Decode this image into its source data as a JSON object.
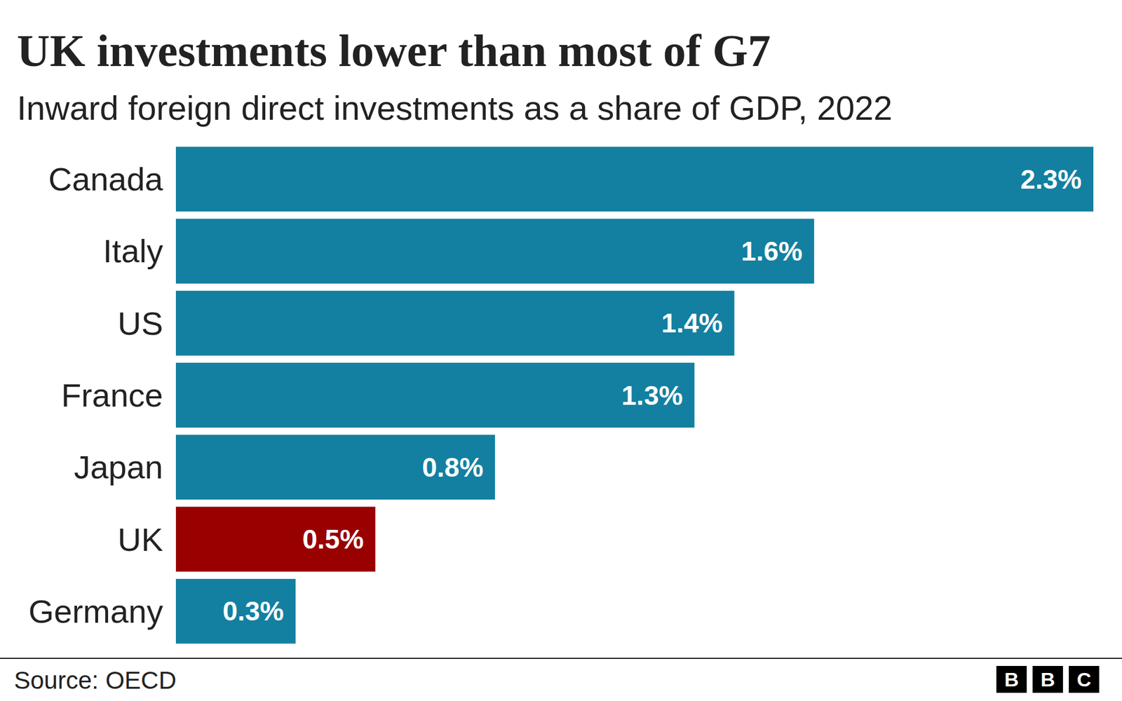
{
  "chart_data": {
    "type": "bar",
    "title": "UK investments lower than most of G7",
    "subtitle": "Inward foreign direct investments as a share of GDP, 2022",
    "categories": [
      "Canada",
      "Italy",
      "US",
      "France",
      "Japan",
      "UK",
      "Germany"
    ],
    "values": [
      2.3,
      1.6,
      1.4,
      1.3,
      0.8,
      0.5,
      0.3
    ],
    "value_labels": [
      "2.3%",
      "1.6%",
      "1.4%",
      "1.3%",
      "0.8%",
      "0.5%",
      "0.3%"
    ],
    "colors": [
      "#1380a1",
      "#1380a1",
      "#1380a1",
      "#1380a1",
      "#1380a1",
      "#990000",
      "#1380a1"
    ],
    "orientation": "horizontal",
    "data_labels": true,
    "tick_labels": "y",
    "grid": false,
    "xlim": [
      0,
      2.3
    ],
    "annotations": [
      "Source: OECD",
      "BBC"
    ]
  }
}
